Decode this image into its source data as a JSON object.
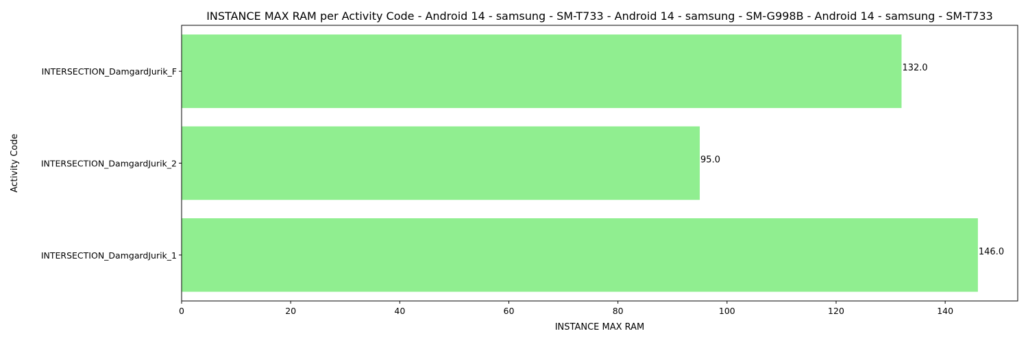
{
  "chart_data": {
    "type": "bar",
    "orientation": "horizontal",
    "title": "INSTANCE MAX RAM per Activity Code - Android 14 - samsung - SM-T733 - Android 14 - samsung - SM-G998B - Android 14 - samsung - SM-T733",
    "xlabel": "INSTANCE MAX RAM",
    "ylabel": "Activity Code",
    "categories": [
      "INTERSECTION_DamgardJurik_1",
      "INTERSECTION_DamgardJurik_2",
      "INTERSECTION_DamgardJurik_F"
    ],
    "values": [
      146.0,
      95.0,
      132.0
    ],
    "data_labels": [
      "146.0",
      "95.0",
      "132.0"
    ],
    "xlim": [
      0,
      153.3
    ],
    "xticks": [
      0,
      20,
      40,
      60,
      80,
      100,
      120,
      140
    ],
    "bar_color": "#90ee90",
    "grid": false,
    "legend": "none"
  }
}
